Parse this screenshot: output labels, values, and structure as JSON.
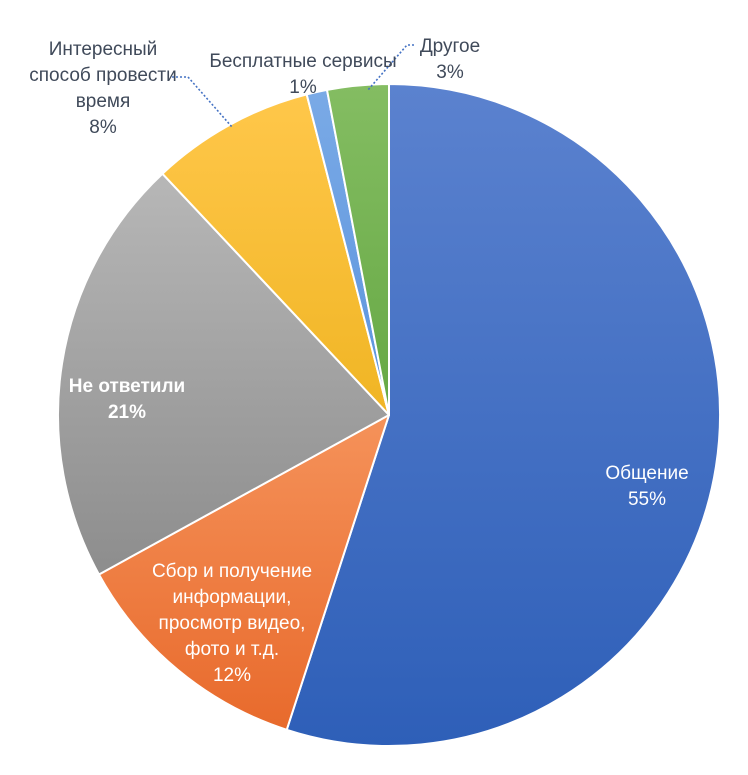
{
  "chart_data": {
    "type": "pie",
    "title": "",
    "start_angle_deg": 0,
    "direction": "clockwise",
    "slices": [
      {
        "name": "Общение",
        "value": 55,
        "percent_label": "55%",
        "label_lines": [
          "Общение",
          "55%"
        ],
        "color_top": "#5b82cf",
        "color_bottom": "#2e5fb8",
        "label_color": "#ffffff",
        "label_bold": false,
        "label_placement": "inside",
        "leader_line": false
      },
      {
        "name": "Сбор и получение информации, просмотр видео, фото и т.д.",
        "value": 12,
        "percent_label": "12%",
        "label_lines": [
          "Сбор и получение",
          "информации,",
          "просмотр видео,",
          "фото и т.д.",
          "12%"
        ],
        "color_top": "#f5925a",
        "color_bottom": "#e86a2c",
        "label_color": "#ffffff",
        "label_bold": false,
        "label_placement": "inside",
        "leader_line": false
      },
      {
        "name": "Не ответили",
        "value": 21,
        "percent_label": "21%",
        "label_lines": [
          "Не ответили",
          "21%"
        ],
        "color_top": "#b7b7b7",
        "color_bottom": "#8d8d8d",
        "label_color": "#ffffff",
        "label_bold": true,
        "label_placement": "inside",
        "leader_line": false
      },
      {
        "name": "Интересный способ провести время",
        "value": 8,
        "percent_label": "8%",
        "label_lines": [
          "Интересный",
          "способ провести",
          "время",
          "8%"
        ],
        "color_top": "#ffc74a",
        "color_bottom": "#f0b524",
        "label_color": "#404a5a",
        "label_bold": false,
        "label_placement": "outside",
        "leader_line": true
      },
      {
        "name": "Бесплатные сервисы",
        "value": 1,
        "percent_label": "1%",
        "label_lines": [
          "Бесплатные сервисы",
          "1%"
        ],
        "color_top": "#7aaae6",
        "color_bottom": "#5b93dd",
        "label_color": "#404a5a",
        "label_bold": false,
        "label_placement": "outside",
        "leader_line": false
      },
      {
        "name": "Другое",
        "value": 3,
        "percent_label": "3%",
        "label_lines": [
          "Другое",
          "3%"
        ],
        "color_top": "#84bd62",
        "color_bottom": "#66a844",
        "label_color": "#404a5a",
        "label_bold": false,
        "label_placement": "outside",
        "leader_line": true
      }
    ],
    "leader_line_color": "#4472c4",
    "slice_border_color": "#ffffff"
  }
}
